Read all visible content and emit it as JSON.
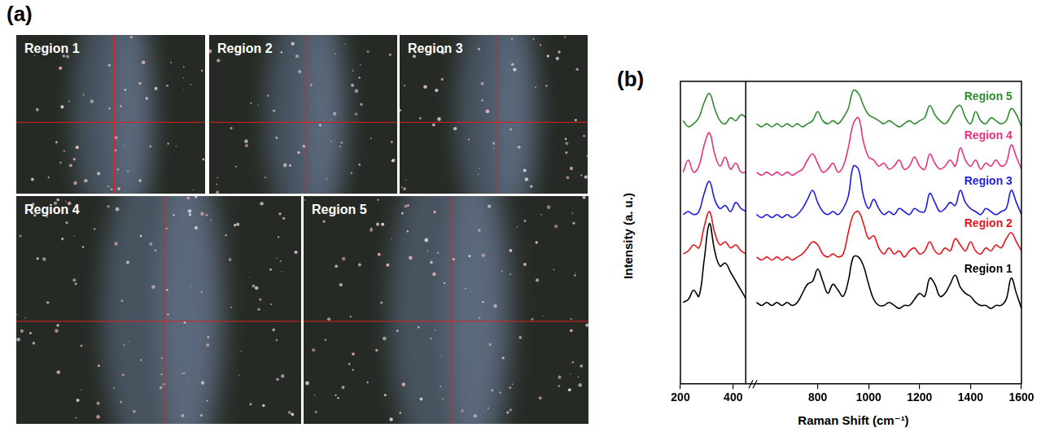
{
  "panel_a": {
    "label": "(a)",
    "images": [
      {
        "label": "Region 1"
      },
      {
        "label": "Region 2"
      },
      {
        "label": "Region 3"
      },
      {
        "label": "Region 4"
      },
      {
        "label": "Region 5"
      }
    ]
  },
  "chart_data": [
    {
      "type": "line",
      "label": "(b)",
      "ylabel": "Intensity (a. u.)",
      "x": [
        210,
        230,
        250,
        270,
        290,
        310,
        330,
        350,
        370,
        390,
        410,
        430,
        450
      ],
      "xlim": [
        200,
        450
      ],
      "xticks": [
        200,
        400
      ],
      "ylim": [
        0,
        100
      ],
      "tick_labels": "x",
      "grid": false,
      "series": [
        {
          "color": "#000000",
          "values": [
            27,
            28,
            31,
            29,
            41,
            53,
            44,
            39,
            40,
            37,
            34,
            31,
            28
          ]
        },
        {
          "color": "#e8141c",
          "values": [
            43,
            44,
            46,
            45,
            52,
            57,
            50,
            46,
            47,
            45,
            46,
            44,
            43
          ]
        },
        {
          "color": "#1c1ce0",
          "values": [
            56,
            57,
            56,
            57,
            63,
            67,
            61,
            58,
            59,
            57,
            60,
            58,
            57
          ]
        },
        {
          "color": "#e8307f",
          "values": [
            70,
            74,
            70,
            72,
            79,
            83,
            76,
            72,
            75,
            71,
            73,
            70,
            70
          ]
        },
        {
          "color": "#2e8b2e",
          "values": [
            87,
            85,
            86,
            88,
            93,
            96,
            91,
            87,
            86,
            88,
            87,
            89,
            88
          ]
        }
      ]
    },
    {
      "type": "line",
      "xlabel": "Raman Shift (cm⁻¹)",
      "x": [
        560,
        580,
        600,
        620,
        640,
        660,
        680,
        700,
        720,
        740,
        760,
        780,
        800,
        820,
        840,
        860,
        880,
        900,
        920,
        940,
        960,
        980,
        1000,
        1020,
        1040,
        1060,
        1080,
        1100,
        1120,
        1140,
        1160,
        1180,
        1200,
        1220,
        1240,
        1260,
        1280,
        1300,
        1320,
        1340,
        1360,
        1380,
        1400,
        1420,
        1440,
        1460,
        1480,
        1500,
        1520,
        1540,
        1560,
        1580,
        1600
      ],
      "xlim": [
        520,
        1600
      ],
      "xticks": [
        800,
        1000,
        1200,
        1400,
        1600
      ],
      "ylim": [
        0,
        100
      ],
      "tick_labels": "x",
      "grid": false,
      "series": [
        {
          "name": "Region 1",
          "color": "#000000",
          "values": [
            27,
            26,
            27,
            26,
            27,
            26,
            27,
            26,
            27,
            30,
            33,
            34,
            38,
            34,
            30,
            33,
            31,
            29,
            34,
            42,
            42,
            39,
            33,
            28,
            26,
            26,
            27,
            26,
            25,
            26,
            26,
            28,
            30,
            29,
            35,
            33,
            29,
            30,
            33,
            36,
            32,
            30,
            29,
            27,
            26,
            26,
            25,
            26,
            26,
            28,
            35,
            30,
            25
          ]
        },
        {
          "name": "Region 2",
          "color": "#e8141c",
          "values": [
            42,
            41,
            42,
            41,
            42,
            41,
            42,
            41,
            42,
            43,
            45,
            47,
            46,
            43,
            42,
            43,
            42,
            43,
            50,
            56,
            57,
            53,
            48,
            49,
            45,
            43,
            45,
            43,
            44,
            42,
            44,
            45,
            43,
            44,
            47,
            44,
            43,
            45,
            44,
            48,
            46,
            44,
            47,
            44,
            43,
            45,
            44,
            46,
            45,
            48,
            50,
            47,
            44
          ]
        },
        {
          "name": "Region 3",
          "color": "#1c1ce0",
          "values": [
            56,
            55,
            56,
            55,
            56,
            55,
            56,
            55,
            56,
            58,
            61,
            64,
            60,
            57,
            56,
            57,
            56,
            58,
            62,
            72,
            71,
            62,
            58,
            61,
            58,
            56,
            57,
            56,
            58,
            57,
            56,
            58,
            57,
            57,
            63,
            60,
            57,
            58,
            60,
            59,
            64,
            60,
            58,
            57,
            56,
            58,
            57,
            56,
            57,
            58,
            64,
            60,
            56
          ]
        },
        {
          "name": "Region 4",
          "color": "#e8307f",
          "values": [
            70,
            69,
            70,
            69,
            70,
            69,
            70,
            69,
            70,
            71,
            74,
            76,
            73,
            70,
            71,
            73,
            70,
            72,
            78,
            86,
            88,
            80,
            75,
            74,
            72,
            73,
            71,
            72,
            74,
            71,
            72,
            75,
            72,
            71,
            76,
            73,
            71,
            72,
            74,
            72,
            78,
            74,
            72,
            74,
            71,
            73,
            72,
            74,
            72,
            73,
            79,
            75,
            71
          ]
        },
        {
          "name": "Region 5",
          "color": "#2e8b2e",
          "values": [
            86,
            85,
            86,
            85,
            86,
            85,
            86,
            85,
            86,
            85,
            86,
            87,
            90,
            87,
            86,
            87,
            86,
            88,
            91,
            97,
            96,
            92,
            89,
            88,
            87,
            86,
            87,
            86,
            85,
            86,
            87,
            86,
            87,
            88,
            92,
            89,
            87,
            86,
            88,
            91,
            92,
            88,
            86,
            90,
            87,
            86,
            88,
            87,
            86,
            87,
            91,
            89,
            85
          ]
        }
      ]
    }
  ]
}
